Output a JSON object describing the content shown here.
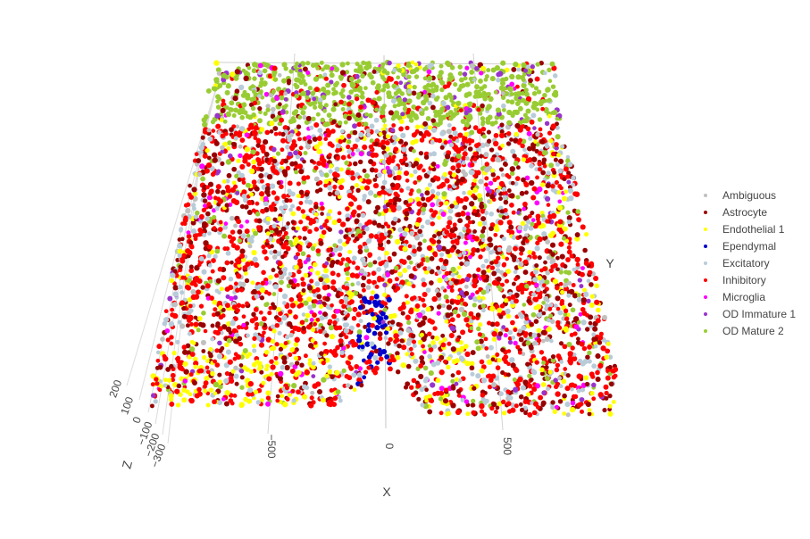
{
  "chart_data": {
    "type": "scatter",
    "dimensionality": "3d",
    "title": "",
    "axes": {
      "x": {
        "label": "X",
        "range": [
          -1000,
          1000
        ],
        "ticks": [
          -500,
          0,
          500
        ],
        "tick_labels": [
          "−500",
          "0",
          "500"
        ]
      },
      "y": {
        "label": "Y",
        "range": [
          -1000,
          1000
        ],
        "ticks": [],
        "tick_labels": []
      },
      "z": {
        "label": "Z",
        "range": [
          -350,
          250
        ],
        "ticks": [
          200,
          100,
          0,
          -100,
          -200,
          -300
        ],
        "tick_labels": [
          "200",
          "100",
          "0",
          "−100",
          "−200",
          "−300"
        ]
      }
    },
    "grid": true,
    "legend": {
      "placement": "right"
    },
    "series": [
      {
        "name": "Ambiguous",
        "color": "#c0c0c0"
      },
      {
        "name": "Astrocyte",
        "color": "#990000"
      },
      {
        "name": "Endothelial 1",
        "color": "#ffff00"
      },
      {
        "name": "Ependymal",
        "color": "#0000cc"
      },
      {
        "name": "Excitatory",
        "color": "#b8cbd9"
      },
      {
        "name": "Inhibitory",
        "color": "#ff0000"
      },
      {
        "name": "Microglia",
        "color": "#ff00ff"
      },
      {
        "name": "OD Immature 1",
        "color": "#9933cc"
      },
      {
        "name": "OD Mature 2",
        "color": "#99cc33"
      }
    ]
  }
}
